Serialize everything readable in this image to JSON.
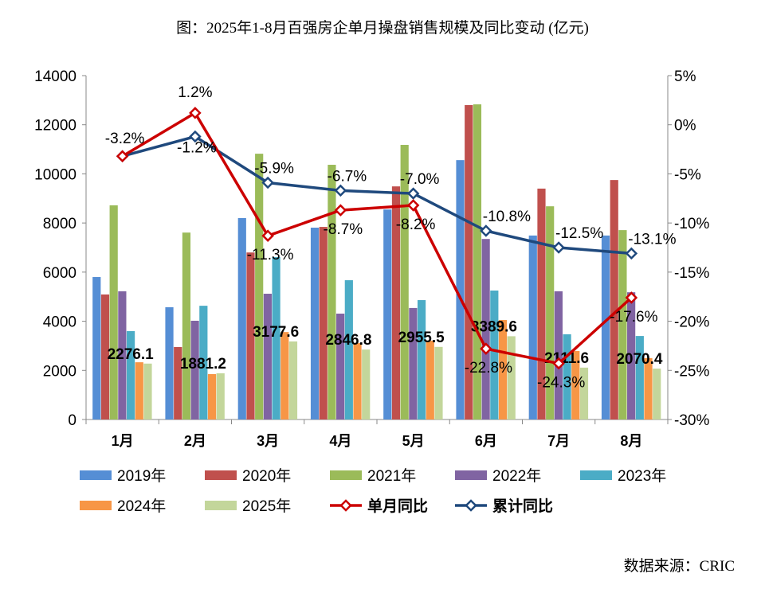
{
  "title": "图：2025年1-8月百强房企单月操盘销售规模及同比变动 (亿元)",
  "source": "数据来源：CRIC",
  "chart_data": {
    "type": "bar+line",
    "categories": [
      "1月",
      "2月",
      "3月",
      "4月",
      "5月",
      "6月",
      "7月",
      "8月"
    ],
    "left_axis": {
      "ylim": [
        0,
        14000
      ],
      "ticks": [
        0,
        2000,
        4000,
        6000,
        8000,
        10000,
        12000,
        14000
      ]
    },
    "right_axis": {
      "ylim": [
        -30,
        5
      ],
      "ticks": [
        "5%",
        "0%",
        "-5%",
        "-10%",
        "-15%",
        "-20%",
        "-25%",
        "-30%"
      ],
      "tick_values": [
        5,
        0,
        -5,
        -10,
        -15,
        -20,
        -25,
        -30
      ]
    },
    "grid": false,
    "legend_position": "bottom",
    "bar_series": [
      {
        "name": "2019年",
        "color": "#558ED5",
        "values": [
          5800,
          4570,
          8200,
          7810,
          8550,
          10560,
          7490,
          7490
        ]
      },
      {
        "name": "2020年",
        "color": "#C0504D",
        "values": [
          5090,
          2950,
          6800,
          7840,
          9490,
          12800,
          9400,
          9750
        ]
      },
      {
        "name": "2021年",
        "color": "#9BBB59",
        "values": [
          8720,
          7610,
          10820,
          10370,
          11180,
          12830,
          8680,
          7710
        ]
      },
      {
        "name": "2022年",
        "color": "#8064A2",
        "values": [
          5220,
          4020,
          5120,
          4310,
          4540,
          7350,
          5220,
          5180
        ]
      },
      {
        "name": "2023年",
        "color": "#4BACC6",
        "values": [
          3600,
          4630,
          6610,
          5670,
          4860,
          5250,
          3470,
          3400
        ]
      },
      {
        "name": "2024年",
        "color": "#F79646",
        "values": [
          2330,
          1850,
          3560,
          3110,
          3210,
          4050,
          2790,
          2500
        ]
      },
      {
        "name": "2025年",
        "color": "#C3D69B",
        "values": [
          2276.1,
          1881.2,
          3177.6,
          2846.8,
          2955.5,
          3389.6,
          2111.6,
          2070.4
        ],
        "labels": [
          "2276.1",
          "1881.2",
          "3177.6",
          "2846.8",
          "2955.5",
          "3389.6",
          "2111.6",
          "2070.4"
        ]
      }
    ],
    "line_series": [
      {
        "name": "单月同比",
        "color": "#CC0000",
        "values": [
          -3.2,
          1.2,
          -11.3,
          -8.7,
          -8.2,
          -22.8,
          -24.3,
          -17.6
        ],
        "labels": [
          "",
          "1.2%",
          "-11.3%",
          "-8.7%",
          "-8.2%",
          "-22.8%",
          "-24.3%",
          "-17.6%"
        ]
      },
      {
        "name": "累计同比",
        "color": "#1F497D",
        "values": [
          -3.2,
          -1.2,
          -5.9,
          -6.7,
          -7.0,
          -10.8,
          -12.5,
          -13.1
        ],
        "labels": [
          "-3.2%",
          "-1.2%",
          "-5.9%",
          "-6.7%",
          "-7.0%",
          "-10.8%",
          "-12.5%",
          "-13.1%"
        ]
      }
    ]
  }
}
